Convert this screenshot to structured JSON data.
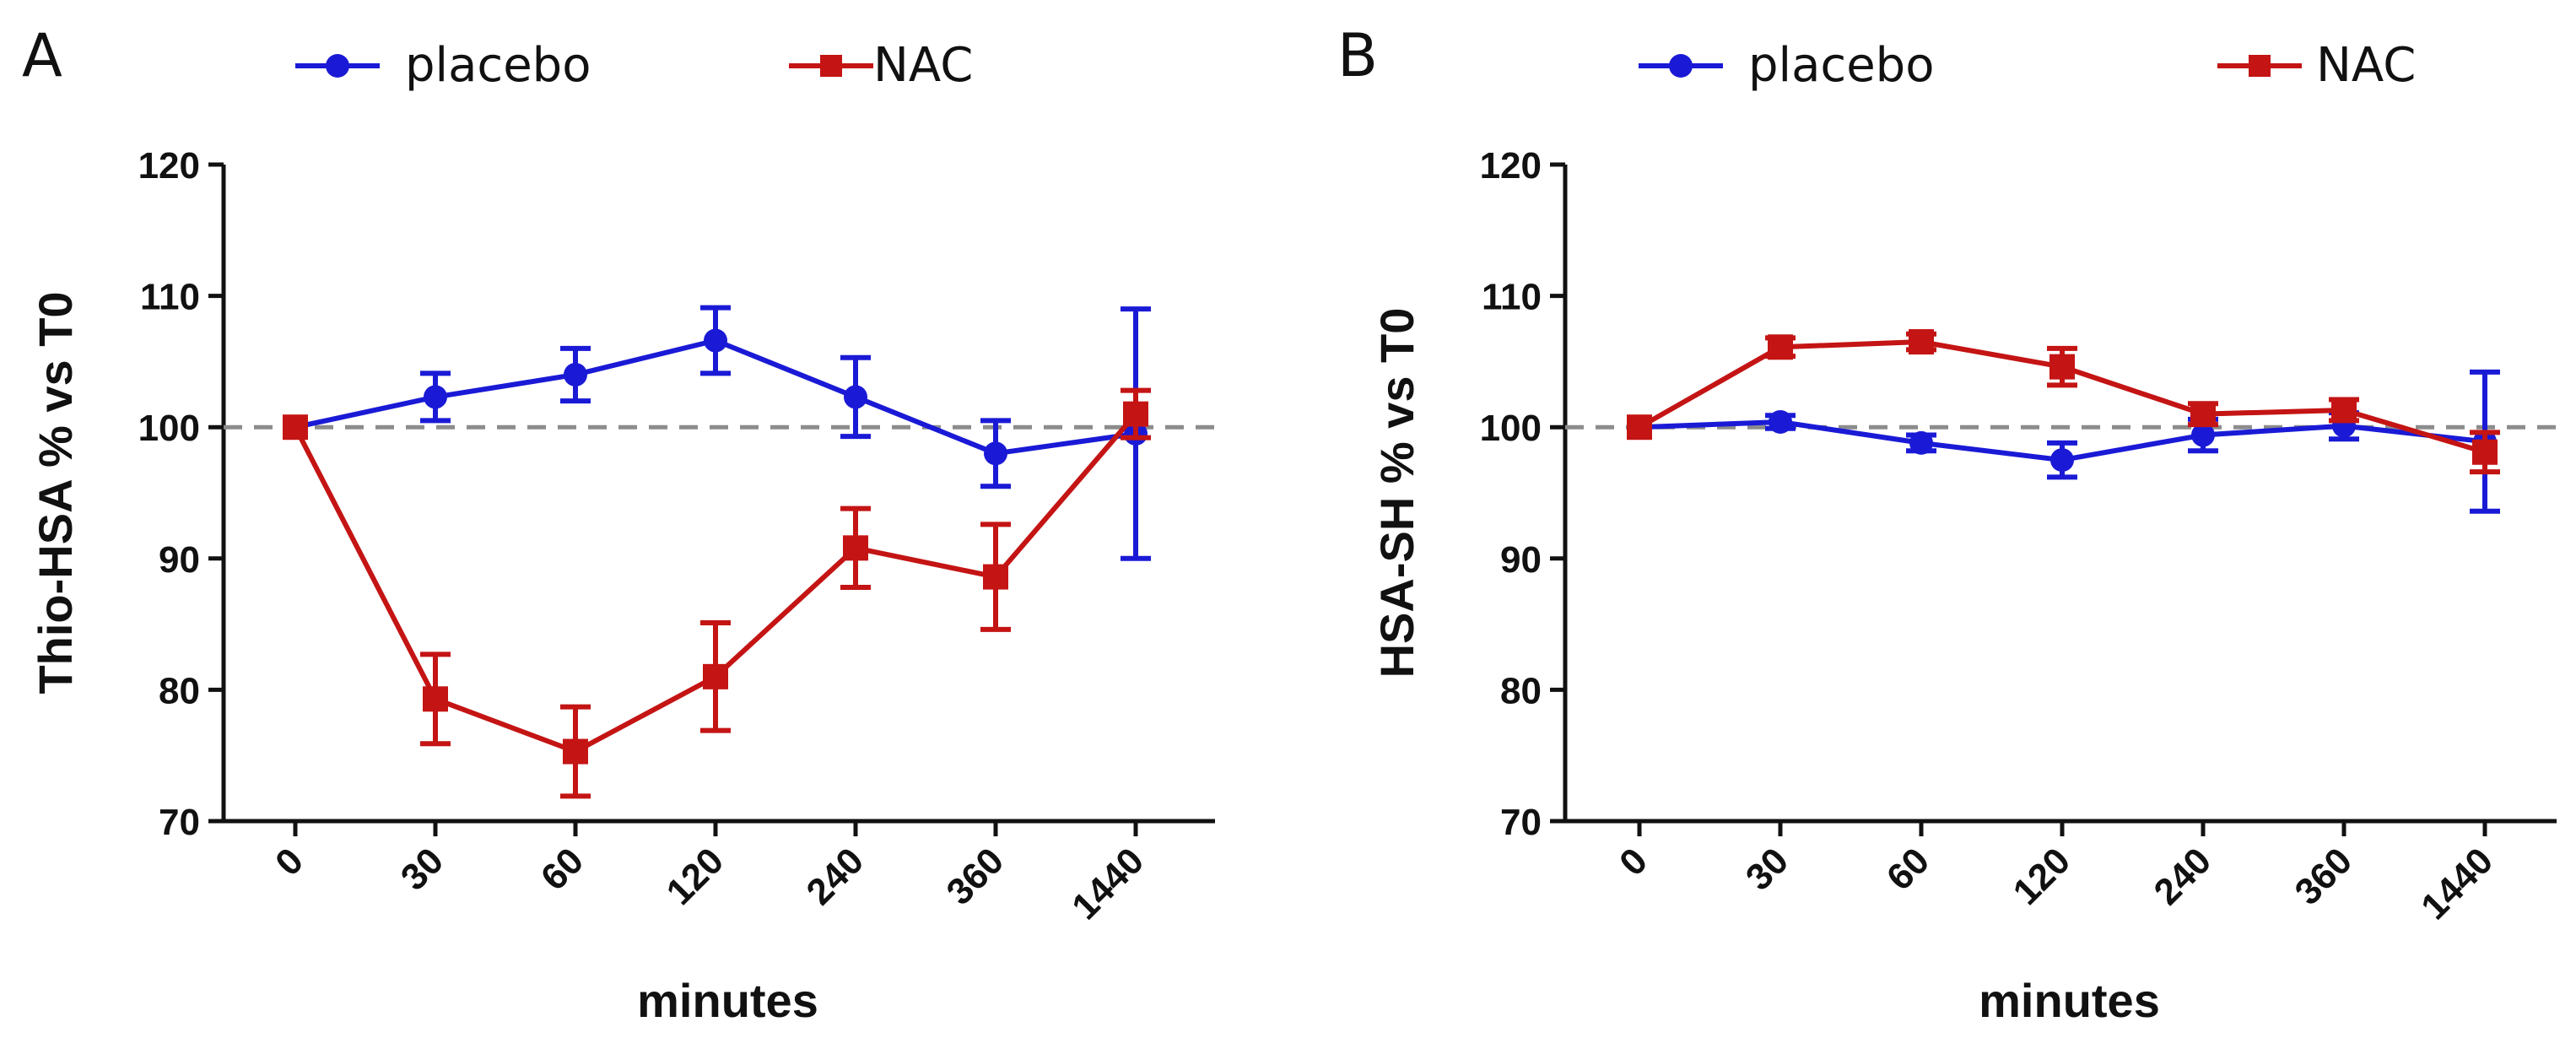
{
  "colors": {
    "placebo": "#1a1ad6",
    "nac": "#c41414",
    "reference_line": "#8c8c8c",
    "axis": "#111111"
  },
  "chart_data": [
    {
      "type": "line",
      "panel_label": "A",
      "title": "",
      "xlabel": "minutes",
      "ylabel": "Thio-HSA % vs T0",
      "categories": [
        "0",
        "30",
        "60",
        "120",
        "240",
        "360",
        "1440"
      ],
      "ylim": [
        70,
        120
      ],
      "yticks": [
        "70",
        "80",
        "90",
        "100",
        "110",
        "120"
      ],
      "reference_line": 100,
      "legend": [
        "placebo",
        "NAC"
      ],
      "series": [
        {
          "name": "placebo",
          "marker": "circle",
          "values": [
            100,
            102.3,
            104,
            106.6,
            102.3,
            98,
            99.5
          ],
          "error": [
            0,
            1.8,
            2,
            2.5,
            3,
            2.5,
            9.5
          ]
        },
        {
          "name": "NAC",
          "marker": "square",
          "values": [
            100,
            79.3,
            75.3,
            81,
            90.8,
            88.6,
            101
          ],
          "error": [
            0,
            3.4,
            3.4,
            4.1,
            3,
            4,
            1.8
          ]
        }
      ]
    },
    {
      "type": "line",
      "panel_label": "B",
      "title": "",
      "xlabel": "minutes",
      "ylabel": "HSA-SH % vs T0",
      "categories": [
        "0",
        "30",
        "60",
        "120",
        "240",
        "360",
        "1440"
      ],
      "ylim": [
        70,
        120
      ],
      "yticks": [
        "70",
        "80",
        "90",
        "100",
        "110",
        "120"
      ],
      "reference_line": 100,
      "legend": [
        "placebo",
        "NAC"
      ],
      "series": [
        {
          "name": "placebo",
          "marker": "circle",
          "values": [
            100,
            100.4,
            98.8,
            97.5,
            99.4,
            100.1,
            98.9
          ],
          "error": [
            0,
            0.5,
            0.6,
            1.3,
            1.2,
            1,
            5.3
          ]
        },
        {
          "name": "NAC",
          "marker": "square",
          "values": [
            100,
            106.1,
            106.5,
            104.6,
            101,
            101.3,
            98.1
          ],
          "error": [
            0,
            0.7,
            0.6,
            1.4,
            0.8,
            0.8,
            1.5
          ]
        }
      ]
    }
  ]
}
